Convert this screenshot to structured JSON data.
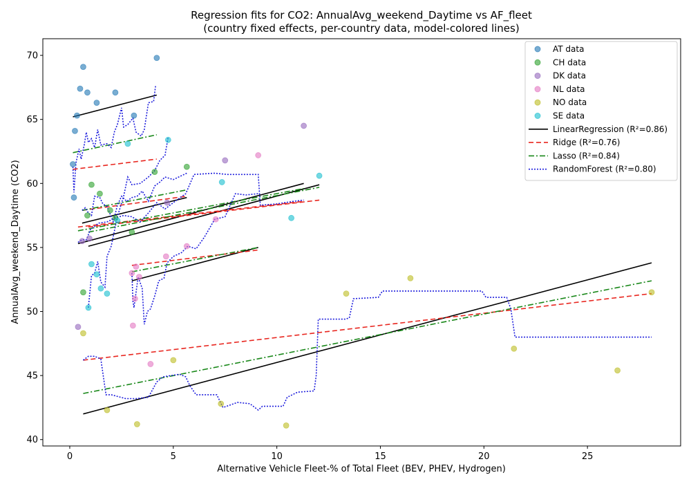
{
  "chart_data": {
    "type": "scatter",
    "title": "Regression fits for CO2: AnnualAvg_weekend_Daytime vs AF_fleet",
    "subtitle": "(country fixed effects, per-country data, model-colored lines)",
    "xlabel": "Alternative Vehicle Fleet-% of Total Fleet (BEV, PHEV, Hydrogen)",
    "ylabel": "AnnualAvg_weekend_Daytime (CO2)",
    "xlim": [
      -1.3,
      29.5
    ],
    "ylim": [
      39.5,
      71.3
    ],
    "xticks": [
      0,
      5,
      10,
      15,
      20,
      25
    ],
    "yticks": [
      40,
      45,
      50,
      55,
      60,
      65,
      70
    ],
    "grid": false,
    "legend_position": "top-right",
    "scatter_series": [
      {
        "name": "AT data",
        "color": "#1f77b4",
        "points": [
          [
            0.15,
            61.5
          ],
          [
            0.2,
            58.9
          ],
          [
            0.25,
            64.1
          ],
          [
            0.35,
            65.3
          ],
          [
            0.5,
            67.4
          ],
          [
            0.65,
            69.1
          ],
          [
            0.85,
            67.1
          ],
          [
            1.3,
            66.3
          ],
          [
            2.2,
            67.1
          ],
          [
            3.1,
            65.3
          ],
          [
            4.2,
            69.8
          ]
        ]
      },
      {
        "name": "CH data",
        "color": "#2ca02c",
        "points": [
          [
            0.65,
            51.5
          ],
          [
            0.85,
            57.5
          ],
          [
            1.05,
            59.9
          ],
          [
            1.45,
            59.2
          ],
          [
            1.95,
            57.9
          ],
          [
            2.2,
            57.3
          ],
          [
            3.0,
            56.2
          ],
          [
            4.1,
            60.9
          ],
          [
            5.65,
            61.3
          ]
        ]
      },
      {
        "name": "DK data",
        "color": "#9467bd",
        "points": [
          [
            0.4,
            48.8
          ],
          [
            0.6,
            55.5
          ],
          [
            0.95,
            55.7
          ],
          [
            4.7,
            58.5
          ],
          [
            7.5,
            61.8
          ],
          [
            11.3,
            64.5
          ]
        ]
      },
      {
        "name": "NL data",
        "color": "#e377c2",
        "points": [
          [
            3.0,
            53.0
          ],
          [
            3.05,
            48.9
          ],
          [
            3.15,
            51.0
          ],
          [
            3.2,
            53.5
          ],
          [
            3.35,
            52.7
          ],
          [
            3.9,
            45.9
          ],
          [
            4.65,
            54.3
          ],
          [
            5.65,
            55.1
          ],
          [
            7.05,
            57.2
          ],
          [
            9.1,
            62.2
          ]
        ]
      },
      {
        "name": "NO data",
        "color": "#bcbd22",
        "points": [
          [
            0.65,
            48.3
          ],
          [
            1.8,
            42.3
          ],
          [
            3.25,
            41.2
          ],
          [
            5.0,
            46.2
          ],
          [
            7.3,
            42.8
          ],
          [
            10.45,
            41.1
          ],
          [
            13.35,
            51.4
          ],
          [
            16.45,
            52.6
          ],
          [
            21.45,
            47.1
          ],
          [
            26.45,
            45.4
          ],
          [
            28.1,
            51.5
          ]
        ]
      },
      {
        "name": "SE data",
        "color": "#17becf",
        "points": [
          [
            0.9,
            50.3
          ],
          [
            1.05,
            53.7
          ],
          [
            1.3,
            52.9
          ],
          [
            1.5,
            51.8
          ],
          [
            1.8,
            51.4
          ],
          [
            2.3,
            57.1
          ],
          [
            2.8,
            63.1
          ],
          [
            4.75,
            63.4
          ],
          [
            7.35,
            60.1
          ],
          [
            10.7,
            57.3
          ],
          [
            12.05,
            60.6
          ]
        ]
      }
    ],
    "line_series": [
      {
        "name": "LinearRegression (R²=0.86)",
        "color": "#000000",
        "dash": "",
        "segments": [
          [
            [
              0.15,
              65.2
            ],
            [
              4.2,
              66.9
            ]
          ],
          [
            [
              0.6,
              56.9
            ],
            [
              5.65,
              58.9
            ]
          ],
          [
            [
              0.4,
              55.3
            ],
            [
              11.3,
              60.0
            ]
          ],
          [
            [
              3.0,
              52.4
            ],
            [
              9.1,
              55.0
            ]
          ],
          [
            [
              0.65,
              42.0
            ],
            [
              28.1,
              53.8
            ]
          ],
          [
            [
              0.9,
              55.1
            ],
            [
              12.05,
              59.9
            ]
          ]
        ]
      },
      {
        "name": "Ridge (R²=0.76)",
        "color": "#e8261f",
        "dash": "7,4",
        "segments": [
          [
            [
              0.15,
              61.1
            ],
            [
              4.2,
              61.9
            ]
          ],
          [
            [
              0.6,
              57.9
            ],
            [
              5.65,
              59.0
            ]
          ],
          [
            [
              0.4,
              56.6
            ],
            [
              11.3,
              58.6
            ]
          ],
          [
            [
              3.0,
              53.6
            ],
            [
              9.1,
              54.8
            ]
          ],
          [
            [
              0.65,
              46.2
            ],
            [
              28.1,
              51.4
            ]
          ],
          [
            [
              0.9,
              56.6
            ],
            [
              12.05,
              58.7
            ]
          ]
        ]
      },
      {
        "name": "Lasso (R²=0.84)",
        "color": "#188718",
        "dash": "8,3,2,3",
        "segments": [
          [
            [
              0.15,
              62.4
            ],
            [
              4.2,
              63.8
            ]
          ],
          [
            [
              0.6,
              57.9
            ],
            [
              5.65,
              59.5
            ]
          ],
          [
            [
              0.4,
              56.3
            ],
            [
              11.3,
              59.6
            ]
          ],
          [
            [
              3.0,
              53.1
            ],
            [
              9.1,
              55.0
            ]
          ],
          [
            [
              0.65,
              43.6
            ],
            [
              28.1,
              52.4
            ]
          ],
          [
            [
              0.9,
              56.2
            ],
            [
              12.05,
              59.7
            ]
          ]
        ]
      },
      {
        "name": "RandomForest (R²=0.80)",
        "color": "#1c1cdc",
        "dash": "2,2",
        "segments": [
          [
            [
              0.15,
              61.3
            ],
            [
              0.2,
              59.3
            ],
            [
              0.3,
              61.6
            ],
            [
              0.45,
              62.7
            ],
            [
              0.55,
              61.9
            ],
            [
              0.7,
              63.0
            ],
            [
              0.8,
              64.0
            ],
            [
              0.9,
              63.2
            ],
            [
              1.05,
              63.5
            ],
            [
              1.2,
              62.8
            ],
            [
              1.35,
              64.2
            ],
            [
              1.5,
              63.0
            ],
            [
              1.8,
              63.1
            ],
            [
              2.0,
              62.8
            ],
            [
              2.15,
              64.0
            ],
            [
              2.3,
              64.6
            ],
            [
              2.5,
              65.9
            ],
            [
              2.6,
              64.4
            ],
            [
              2.8,
              64.6
            ],
            [
              3.05,
              65.1
            ],
            [
              3.2,
              64.0
            ],
            [
              3.45,
              63.7
            ],
            [
              3.6,
              64.2
            ],
            [
              3.8,
              66.3
            ],
            [
              4.05,
              66.4
            ],
            [
              4.15,
              67.7
            ]
          ],
          [
            [
              0.6,
              57.9
            ],
            [
              0.75,
              58.1
            ],
            [
              0.9,
              57.7
            ],
            [
              1.05,
              57.5
            ],
            [
              1.2,
              59.0
            ],
            [
              1.45,
              58.9
            ],
            [
              1.6,
              58.4
            ],
            [
              1.8,
              58.2
            ],
            [
              1.95,
              57.6
            ],
            [
              2.1,
              57.0
            ],
            [
              2.3,
              58.3
            ],
            [
              2.5,
              59.0
            ],
            [
              2.75,
              58.6
            ],
            [
              3.0,
              58.9
            ],
            [
              3.25,
              59.0
            ],
            [
              3.5,
              59.4
            ],
            [
              3.8,
              58.6
            ],
            [
              4.1,
              59.8
            ],
            [
              4.35,
              60.1
            ],
            [
              4.6,
              60.5
            ],
            [
              5.0,
              60.3
            ],
            [
              5.65,
              60.8
            ]
          ],
          [
            [
              0.4,
              55.4
            ],
            [
              0.6,
              55.6
            ],
            [
              0.8,
              55.6
            ],
            [
              1.0,
              56.4
            ],
            [
              1.4,
              56.9
            ],
            [
              1.8,
              57.0
            ],
            [
              2.2,
              57.3
            ],
            [
              2.6,
              57.5
            ],
            [
              3.0,
              57.4
            ],
            [
              3.4,
              57.0
            ],
            [
              3.8,
              57.7
            ],
            [
              4.2,
              58.5
            ],
            [
              4.6,
              58.0
            ],
            [
              5.0,
              58.5
            ],
            [
              5.6,
              59.2
            ],
            [
              6.0,
              60.7
            ],
            [
              7.0,
              60.8
            ],
            [
              7.6,
              60.7
            ],
            [
              8.4,
              60.7
            ],
            [
              9.1,
              60.7
            ],
            [
              9.2,
              58.3
            ],
            [
              10.0,
              58.4
            ],
            [
              10.8,
              58.6
            ],
            [
              11.3,
              58.7
            ]
          ],
          [
            [
              3.0,
              53.0
            ],
            [
              3.05,
              50.8
            ],
            [
              3.1,
              50.3
            ],
            [
              3.2,
              51.5
            ],
            [
              3.3,
              52.7
            ],
            [
              3.5,
              51.8
            ],
            [
              3.6,
              49.0
            ],
            [
              3.75,
              50.0
            ],
            [
              3.9,
              50.2
            ],
            [
              4.1,
              51.2
            ],
            [
              4.3,
              52.4
            ],
            [
              4.55,
              52.6
            ],
            [
              4.7,
              53.8
            ],
            [
              5.0,
              54.3
            ],
            [
              5.4,
              54.6
            ],
            [
              5.7,
              55.1
            ],
            [
              6.1,
              54.9
            ],
            [
              6.5,
              55.8
            ],
            [
              7.0,
              57.2
            ],
            [
              7.5,
              57.4
            ],
            [
              8.0,
              59.2
            ],
            [
              8.5,
              59.1
            ],
            [
              9.1,
              59.2
            ]
          ],
          [
            [
              0.65,
              46.2
            ],
            [
              0.9,
              46.5
            ],
            [
              1.2,
              46.5
            ],
            [
              1.5,
              46.3
            ],
            [
              1.75,
              43.5
            ],
            [
              2.0,
              43.5
            ],
            [
              2.7,
              43.2
            ],
            [
              3.2,
              43.2
            ],
            [
              3.8,
              43.3
            ],
            [
              4.2,
              44.5
            ],
            [
              4.5,
              44.9
            ],
            [
              5.3,
              45.1
            ],
            [
              5.6,
              44.9
            ],
            [
              5.8,
              44.2
            ],
            [
              6.1,
              43.5
            ],
            [
              7.1,
              43.5
            ],
            [
              7.4,
              42.5
            ],
            [
              8.1,
              42.9
            ],
            [
              8.7,
              42.8
            ],
            [
              9.1,
              42.3
            ],
            [
              9.3,
              42.6
            ],
            [
              10.3,
              42.6
            ],
            [
              10.5,
              43.3
            ],
            [
              11.0,
              43.7
            ],
            [
              11.8,
              43.8
            ],
            [
              11.9,
              45.0
            ],
            [
              12.0,
              49.4
            ],
            [
              13.3,
              49.4
            ],
            [
              13.5,
              49.5
            ],
            [
              13.7,
              51.0
            ],
            [
              14.9,
              51.1
            ],
            [
              15.1,
              51.6
            ],
            [
              19.9,
              51.6
            ],
            [
              20.1,
              51.1
            ],
            [
              21.1,
              51.1
            ],
            [
              21.3,
              50.2
            ],
            [
              21.5,
              48.0
            ],
            [
              28.1,
              48.0
            ]
          ],
          [
            [
              0.9,
              50.3
            ],
            [
              1.05,
              52.8
            ],
            [
              1.2,
              53.0
            ],
            [
              1.35,
              53.9
            ],
            [
              1.5,
              52.3
            ],
            [
              1.7,
              51.9
            ],
            [
              1.8,
              54.3
            ],
            [
              2.0,
              55.1
            ],
            [
              2.3,
              57.4
            ],
            [
              2.6,
              59.0
            ],
            [
              2.8,
              60.5
            ],
            [
              3.0,
              59.9
            ],
            [
              3.4,
              60.0
            ],
            [
              3.8,
              60.5
            ],
            [
              4.1,
              61.0
            ],
            [
              4.35,
              61.8
            ],
            [
              4.6,
              62.2
            ],
            [
              4.75,
              63.6
            ]
          ]
        ]
      }
    ]
  }
}
